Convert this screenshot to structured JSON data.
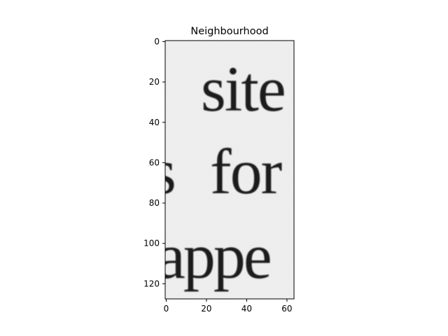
{
  "figure": {
    "title": "Neighbourhood"
  },
  "image": {
    "description_lines": [
      "site",
      "s for",
      "appe"
    ],
    "background": "#f0f0f0",
    "ink": "#1f1f1f",
    "colormap": "gray"
  },
  "axes": {
    "x_ticks": [
      "0",
      "20",
      "40",
      "60"
    ],
    "y_ticks": [
      "0",
      "20",
      "40",
      "60",
      "80",
      "100",
      "120"
    ],
    "x_range": [
      0,
      63
    ],
    "y_range": [
      0,
      127
    ]
  }
}
